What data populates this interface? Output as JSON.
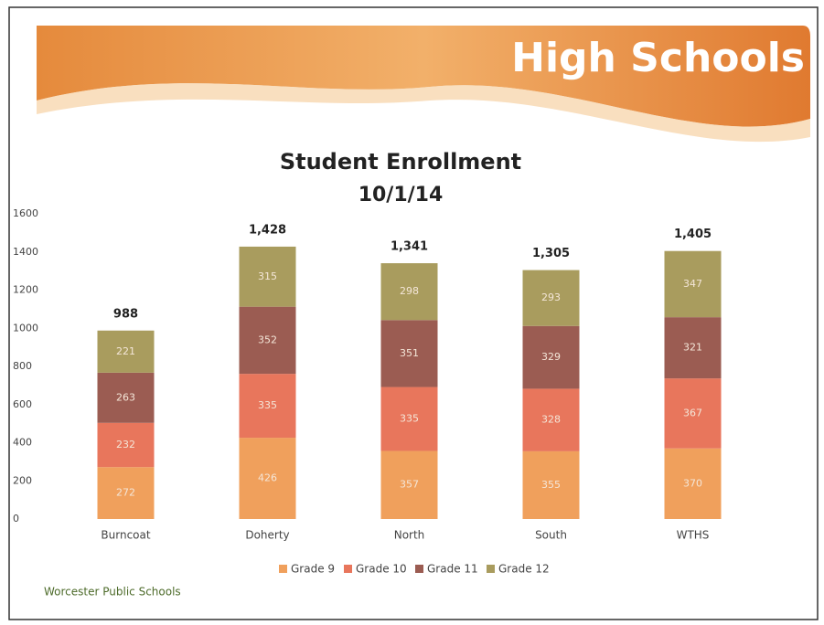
{
  "header": {
    "title": "High Schools"
  },
  "chart_data": {
    "type": "stacked-bar",
    "title": "Student Enrollment",
    "subtitle": "10/1/14",
    "categories": [
      "Burncoat",
      "Doherty",
      "North",
      "South",
      "WTHS"
    ],
    "series": [
      {
        "name": "Grade 9",
        "color": "#f0a05c",
        "values": [
          272,
          426,
          357,
          355,
          370
        ]
      },
      {
        "name": "Grade 10",
        "color": "#e8765c",
        "values": [
          232,
          335,
          335,
          328,
          367
        ]
      },
      {
        "name": "Grade 11",
        "color": "#9b5c52",
        "values": [
          263,
          352,
          351,
          329,
          321
        ]
      },
      {
        "name": "Grade 12",
        "color": "#a99c5e",
        "values": [
          221,
          315,
          298,
          293,
          347
        ]
      }
    ],
    "totals": {
      "values": [
        988,
        1428,
        1341,
        1305,
        1405
      ],
      "value_labels": [
        "988",
        "1,428",
        "1,341",
        "1,305",
        "1,405"
      ]
    },
    "ylim": [
      0,
      1600
    ],
    "yticks": [
      0,
      200,
      400,
      600,
      800,
      1000,
      1200,
      1400,
      1600
    ],
    "grid": false,
    "legend": "bottom"
  },
  "footer": {
    "text": "Worcester Public Schools"
  }
}
